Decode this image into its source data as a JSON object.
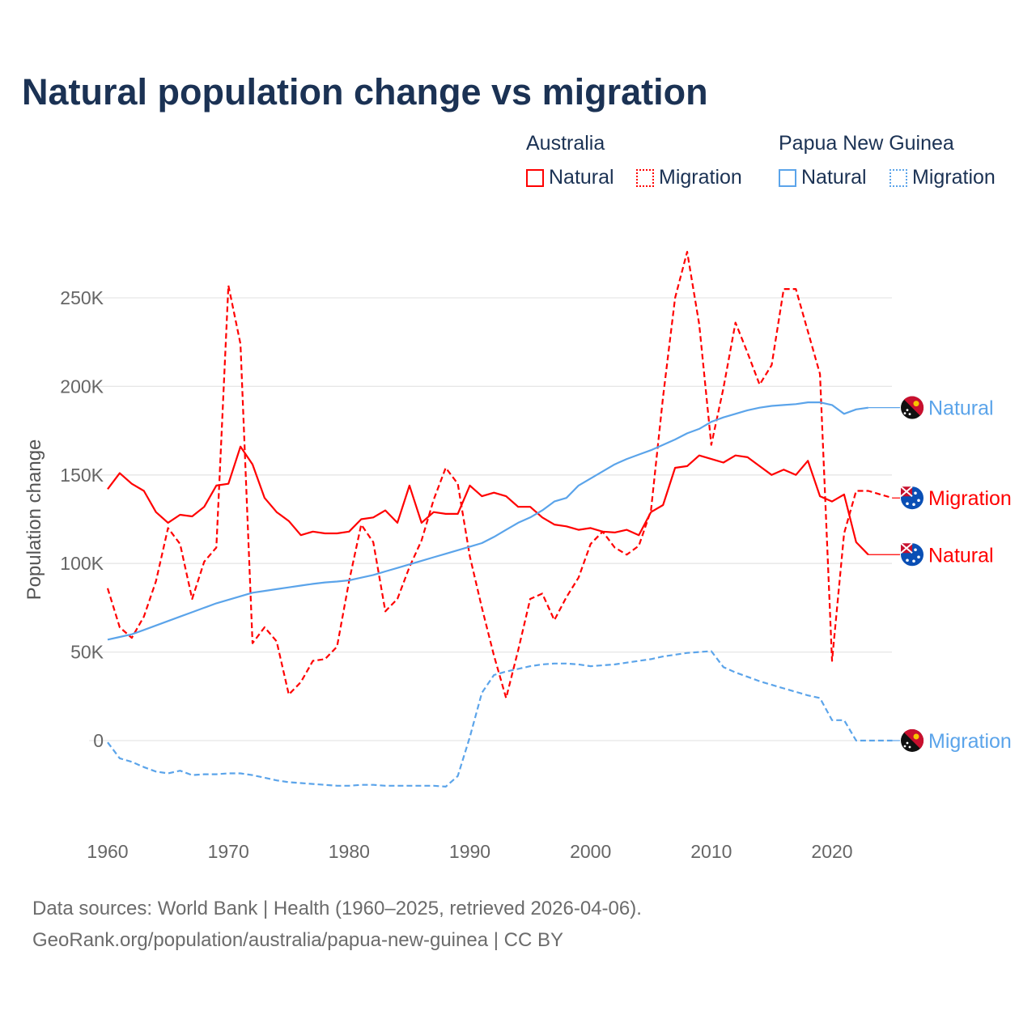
{
  "title": "Natural population change vs migration",
  "legend": {
    "groups": [
      {
        "name": "Australia",
        "color": "#ff0000",
        "items": [
          "Natural",
          "Migration"
        ]
      },
      {
        "name": "Papua New Guinea",
        "color": "#5ba4ea",
        "items": [
          "Natural",
          "Migration"
        ]
      }
    ]
  },
  "footer": {
    "line1": "Data sources: World Bank | Health (1960–2025, retrieved 2026-04-06).",
    "line2": "GeoRank.org/population/australia/papua-new-guinea | CC BY"
  },
  "chart_data": {
    "type": "line",
    "title": "Natural population change vs migration",
    "xlabel": "",
    "ylabel": "Population change",
    "xlim": [
      1960,
      2025
    ],
    "ylim": [
      -45000,
      290000
    ],
    "x_ticks": [
      1960,
      1970,
      1980,
      1990,
      2000,
      2010,
      2020
    ],
    "x_tick_labels": [
      "1960",
      "1970",
      "1980",
      "1990",
      "2000",
      "2010",
      "2020"
    ],
    "y_ticks": [
      0,
      50000,
      100000,
      150000,
      200000,
      250000
    ],
    "y_tick_labels": [
      "0",
      "50K",
      "100K",
      "150K",
      "200K",
      "250K"
    ],
    "grid": true,
    "legend_position": "top-right",
    "series": [
      {
        "name": "Australia Natural",
        "country": "Australia",
        "kind": "Natural",
        "color": "#ff0000",
        "dashed": false,
        "end_label": "Natural",
        "start_year": 1960,
        "values_k": [
          142,
          151,
          145,
          141,
          129,
          123,
          127.5,
          126.6,
          132,
          144,
          145,
          166,
          156,
          137,
          129,
          124,
          116,
          118,
          117,
          117,
          118,
          125,
          126,
          130,
          123,
          144,
          123,
          129,
          128,
          128,
          144,
          138,
          140,
          138,
          132,
          132,
          126,
          122,
          121,
          119,
          120,
          118,
          117.5,
          119,
          116,
          129,
          133,
          154,
          155,
          161,
          159,
          157,
          161,
          160,
          155,
          150,
          153,
          150,
          158,
          138,
          135,
          139,
          112,
          105
        ]
      },
      {
        "name": "Australia Migration",
        "country": "Australia",
        "kind": "Migration",
        "color": "#ff0000",
        "dashed": true,
        "end_label": "Migration",
        "start_year": 1960,
        "values_k": [
          86,
          64,
          58,
          70,
          90,
          120,
          111,
          80,
          101,
          109,
          257,
          224,
          55,
          64,
          56,
          26,
          33,
          45,
          46,
          53,
          90,
          122,
          112,
          73,
          80,
          98,
          113,
          136,
          154,
          145,
          104,
          75,
          48,
          24,
          51,
          80,
          83,
          68,
          81,
          92,
          111,
          118,
          109,
          105,
          110,
          130,
          194,
          250,
          276,
          235,
          167,
          199,
          236,
          219,
          201,
          212,
          255,
          255,
          231,
          207,
          45,
          117,
          141,
          141,
          139,
          137
        ]
      },
      {
        "name": "Papua New Guinea Natural",
        "country": "Papua New Guinea",
        "kind": "Natural",
        "color": "#5ba4ea",
        "dashed": false,
        "end_label": "Natural",
        "start_year": 1960,
        "values_k": [
          57,
          58.5,
          60,
          62.5,
          65,
          67.5,
          70,
          72.5,
          75,
          77.5,
          79.5,
          81.5,
          83.5,
          84.5,
          85.5,
          86.5,
          87.5,
          88.5,
          89.3,
          89.8,
          90.5,
          92,
          93.5,
          95.5,
          97.5,
          99.5,
          101.5,
          103.5,
          105.5,
          107.5,
          109.5,
          111.5,
          115,
          119,
          123,
          126,
          130,
          135,
          137,
          144,
          148,
          152,
          156,
          159,
          161.5,
          164,
          167,
          170,
          173.5,
          176,
          180,
          182.5,
          184.5,
          186.5,
          188,
          189,
          189.5,
          190,
          191,
          191,
          189.5,
          184.5,
          187,
          188
        ]
      },
      {
        "name": "Papua New Guinea Migration",
        "country": "Papua New Guinea",
        "kind": "Migration",
        "color": "#5ba4ea",
        "dashed": true,
        "end_label": "Migration",
        "start_year": 1960,
        "values_k": [
          -1,
          -10,
          -12,
          -15,
          -17.5,
          -18.5,
          -17,
          -19.5,
          -19,
          -19,
          -18.5,
          -18.5,
          -19.5,
          -21,
          -22.5,
          -23.5,
          -24,
          -24.5,
          -25,
          -25.5,
          -25.5,
          -25,
          -25,
          -25.5,
          -25.5,
          -25.5,
          -25.5,
          -25.5,
          -26,
          -20,
          2,
          27,
          37,
          39,
          40.5,
          42,
          43,
          43.5,
          43.5,
          43,
          42,
          42.5,
          43,
          44,
          45,
          46,
          47.5,
          48.5,
          49.5,
          50,
          50.5,
          41.5,
          38.5,
          36,
          33.5,
          31.5,
          29.5,
          27.5,
          25.5,
          24,
          11.5,
          11.5,
          0,
          0,
          0,
          0
        ]
      }
    ]
  }
}
